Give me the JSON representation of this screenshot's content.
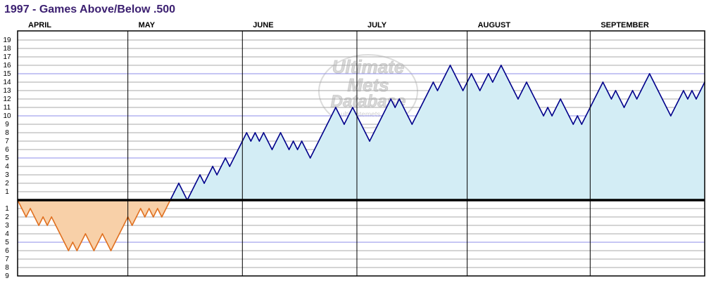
{
  "chart_data": {
    "type": "area",
    "title": "1997 - Games Above/Below .500",
    "months": [
      {
        "label": "APRIL",
        "start_game": 0
      },
      {
        "label": "MAY",
        "start_game": 26
      },
      {
        "label": "JUNE",
        "start_game": 53
      },
      {
        "label": "JULY",
        "start_game": 80
      },
      {
        "label": "AUGUST",
        "start_game": 106
      },
      {
        "label": "SEPTEMBER",
        "start_game": 135
      }
    ],
    "total_games": 162,
    "y_ticks_above": [
      "1",
      "2",
      "3",
      "4",
      "5",
      "6",
      "7",
      "8",
      "9",
      "10",
      "11",
      "12",
      "13",
      "14",
      "15",
      "16",
      "17",
      "18",
      "19"
    ],
    "y_ticks_below": [
      "1",
      "2",
      "3",
      "4",
      "5",
      "6",
      "7",
      "8",
      "9"
    ],
    "ylim": [
      -9,
      19
    ],
    "highlight_lines": [
      15,
      10,
      5,
      -5
    ],
    "colors": {
      "above_fill": "#d3edf5",
      "above_line": "#00008b",
      "below_fill": "#f8d0a8",
      "below_line": "#e07020",
      "grid": "#a8a8a8",
      "highlight_grid": "#8e8ee8",
      "title": "#3b1f70"
    },
    "watermark": {
      "line1": "Ultimate",
      "line2": "Mets",
      "line3": "Database",
      "url": "ultimatemets.com"
    },
    "series": [
      {
        "values": [
          0,
          -1,
          -2,
          -1,
          -2,
          -3,
          -2,
          -3,
          -2,
          -3,
          -4,
          -5,
          -6,
          -5,
          -6,
          -5,
          -4,
          -5,
          -6,
          -5,
          -4,
          -5,
          -6,
          -5,
          -4,
          -3,
          -2,
          -3,
          -2,
          -1,
          -2,
          -1,
          -2,
          -1,
          -2,
          -1,
          0,
          1,
          2,
          1,
          0,
          1,
          2,
          3,
          2,
          3,
          4,
          3,
          4,
          5,
          4,
          5,
          6,
          7,
          8,
          7,
          8,
          7,
          8,
          7,
          6,
          7,
          8,
          7,
          6,
          7,
          6,
          7,
          6,
          5,
          6,
          7,
          8,
          9,
          10,
          11,
          10,
          9,
          10,
          11,
          10,
          9,
          8,
          7,
          8,
          9,
          10,
          11,
          12,
          11,
          12,
          11,
          10,
          9,
          10,
          11,
          12,
          13,
          14,
          13,
          14,
          15,
          16,
          15,
          14,
          13,
          14,
          15,
          14,
          13,
          14,
          15,
          14,
          15,
          16,
          15,
          14,
          13,
          12,
          13,
          14,
          13,
          12,
          11,
          10,
          11,
          10,
          11,
          12,
          11,
          10,
          9,
          10,
          9,
          10,
          11,
          12,
          13,
          14,
          13,
          12,
          13,
          12,
          11,
          12,
          13,
          12,
          13,
          14,
          15,
          14,
          13,
          12,
          11,
          10,
          11,
          12,
          13,
          12,
          13,
          12,
          13,
          14
        ]
      }
    ]
  }
}
